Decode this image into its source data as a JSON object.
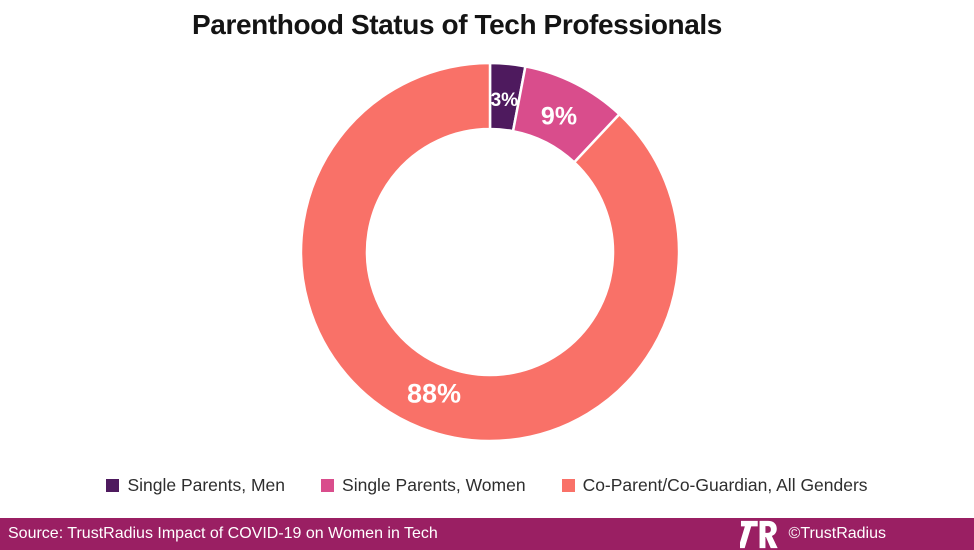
{
  "title": "Parenthood Status of Tech Professionals",
  "chart_data": {
    "type": "pie",
    "subtype": "donut",
    "title": "Parenthood Status of Tech Professionals",
    "categories": [
      "Single Parents, Men",
      "Single Parents, Women",
      "Co-Parent/Co-Guardian, All Genders"
    ],
    "values": [
      3,
      9,
      88
    ],
    "slices": [
      {
        "label": "Single Parents, Men",
        "value": 3,
        "display_label": "3%",
        "color": "#4E1A5E",
        "label_font_px": 19
      },
      {
        "label": "Single Parents, Women",
        "value": 9,
        "display_label": "9%",
        "color": "#D94D8C",
        "label_font_px": 25
      },
      {
        "label": "Co-Parent/Co-Guardian, All Genders",
        "value": 88,
        "display_label": "88%",
        "color": "#F97168",
        "label_font_px": 27
      }
    ],
    "start_angle_deg": 0,
    "direction": "clockwise",
    "hole_ratio": 0.65,
    "separator_color": "#FFFFFF",
    "legend_position": "bottom",
    "data_labels": "percent shown inside ring"
  },
  "footer": {
    "source": "Source: TrustRadius Impact of COVID-19 on Women in Tech",
    "copyright": "©TrustRadius",
    "bar_color": "#9A1F63",
    "logo": "trustradius-tr-monogram"
  }
}
